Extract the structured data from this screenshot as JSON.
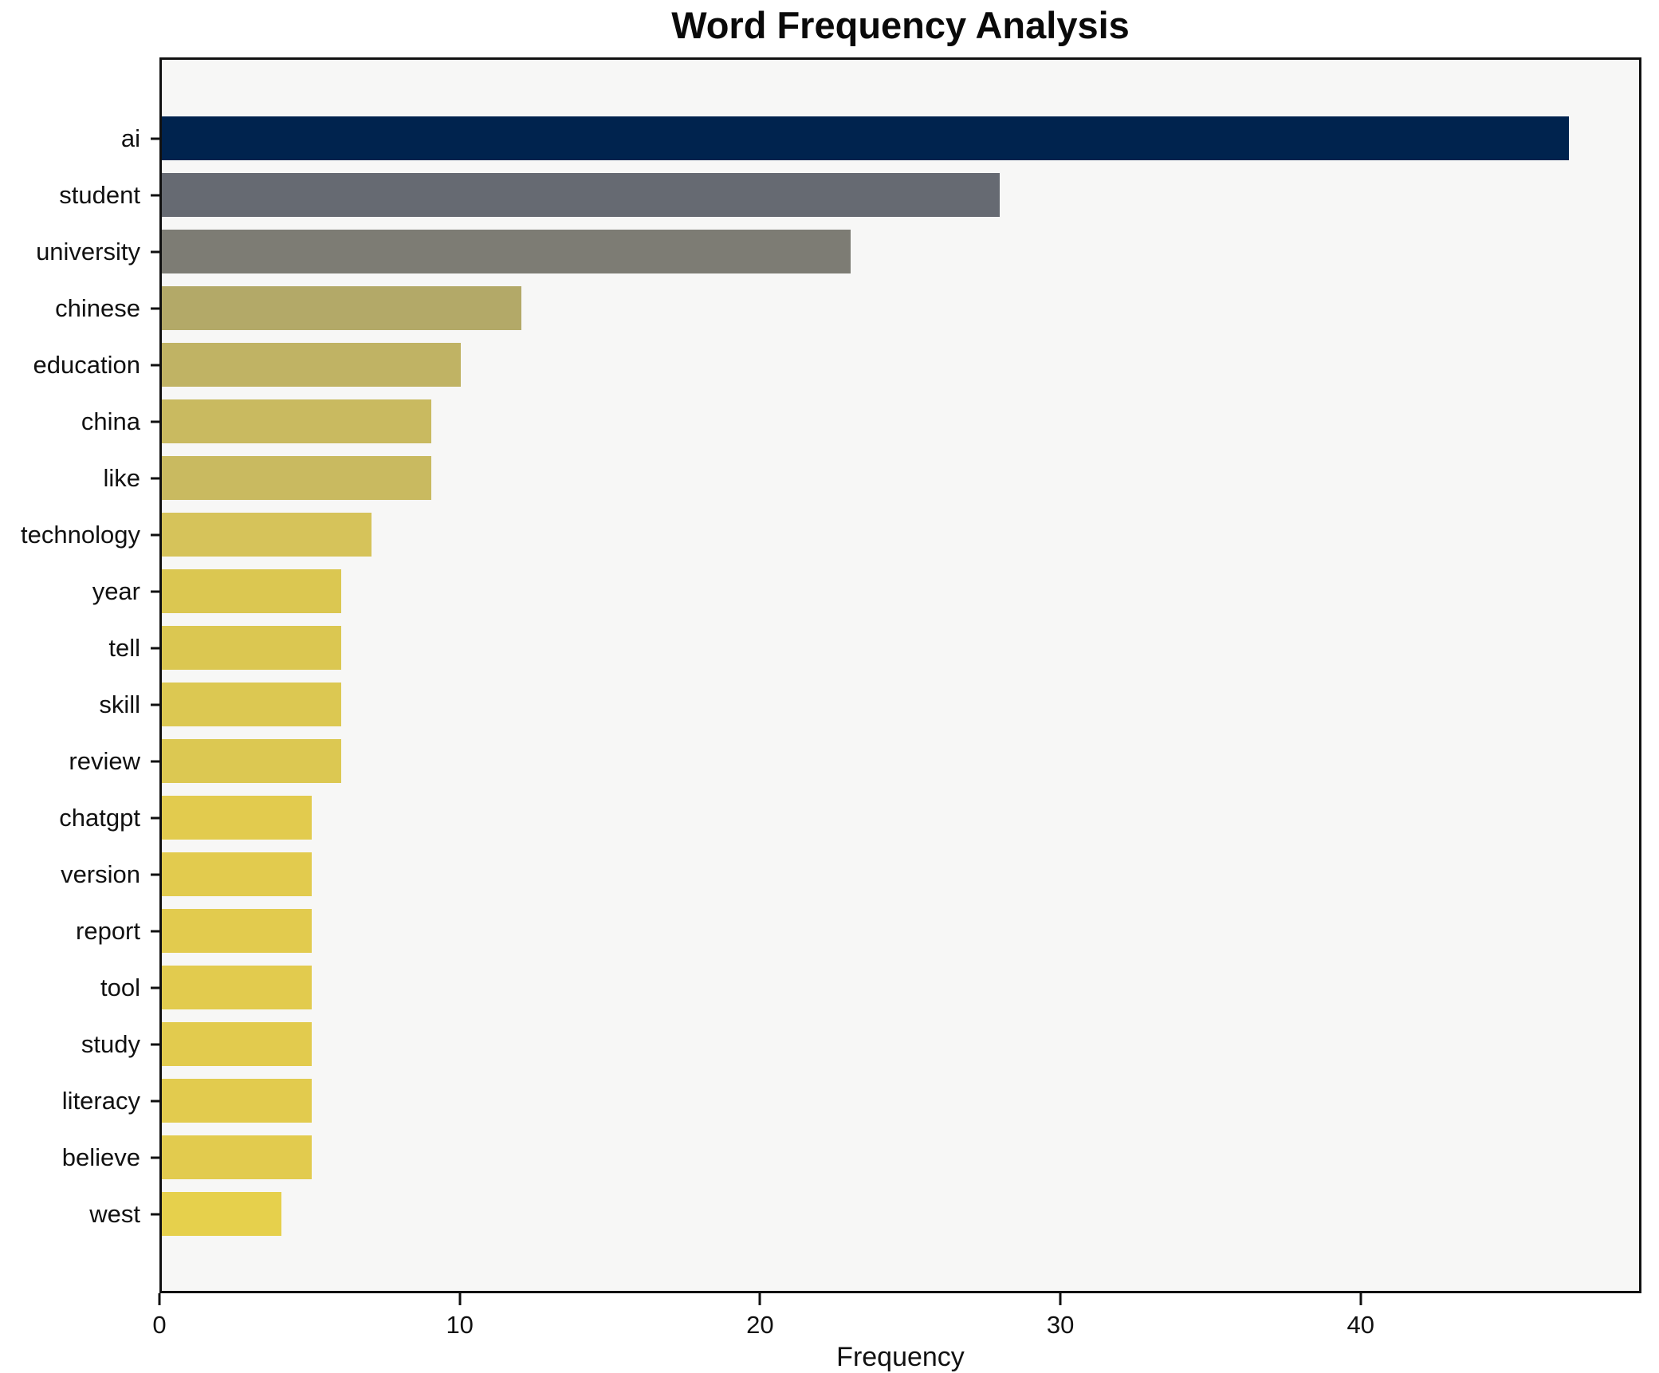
{
  "chart_data": {
    "type": "bar",
    "orientation": "horizontal",
    "title": "Word Frequency Analysis",
    "xlabel": "Frequency",
    "ylabel": "",
    "xlim": [
      0,
      49.35
    ],
    "xticks": [
      "0",
      "10",
      "20",
      "30",
      "40"
    ],
    "xtick_values": [
      0,
      10,
      20,
      30,
      40
    ],
    "grid": false,
    "legend": "none",
    "categories": [
      "ai",
      "student",
      "university",
      "chinese",
      "education",
      "china",
      "like",
      "technology",
      "year",
      "tell",
      "skill",
      "review",
      "chatgpt",
      "version",
      "report",
      "tool",
      "study",
      "literacy",
      "believe",
      "west"
    ],
    "values": [
      47,
      28,
      23,
      12,
      10,
      9,
      9,
      7,
      6,
      6,
      6,
      6,
      5,
      5,
      5,
      5,
      5,
      5,
      5,
      4
    ],
    "bar_colors": [
      "#00234e",
      "#666a72",
      "#7d7c74",
      "#b3a968",
      "#c0b364",
      "#c9ba60",
      "#c9ba60",
      "#d6c35a",
      "#dbc751",
      "#dbc751",
      "#dcc852",
      "#dcc852",
      "#e2cb4e",
      "#e2cb4e",
      "#e2cb4e",
      "#e2cb4e",
      "#e2cb4e",
      "#e2cb4e",
      "#e2cb4e",
      "#e6d04c"
    ],
    "plot_background": "#f7f7f6",
    "figure_background": "#ffffff",
    "axis_color": "#111111",
    "title_color": "#0a0a0a"
  }
}
